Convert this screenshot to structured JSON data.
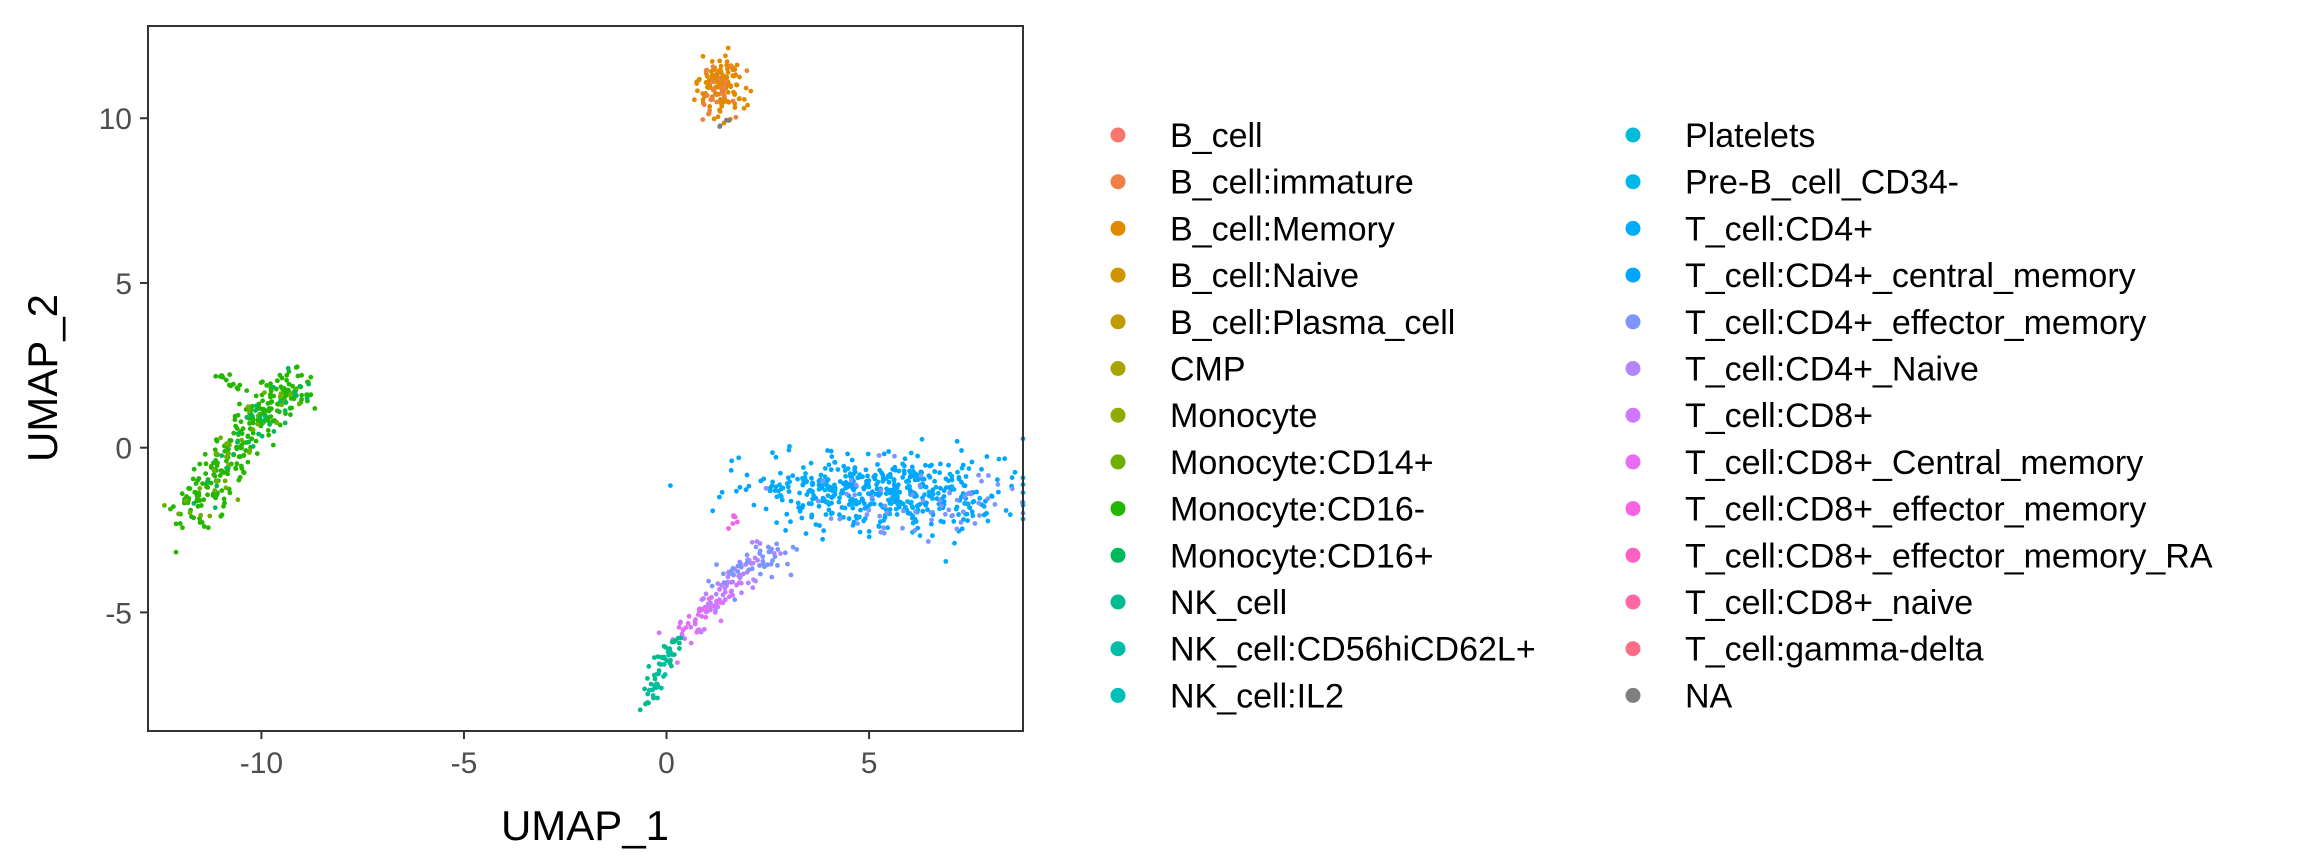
{
  "chart_data": {
    "type": "scatter",
    "title": "",
    "xlabel": "UMAP_1",
    "ylabel": "UMAP_2",
    "xlim": [
      -12.8,
      8.8
    ],
    "ylim": [
      -8.6,
      12.8
    ],
    "xticks": [
      -10,
      -5,
      0,
      5
    ],
    "xtick_labels": [
      "-10",
      "-5",
      "0",
      "5"
    ],
    "yticks": [
      -5,
      0,
      5,
      10
    ],
    "ytick_labels": [
      "-5",
      "0",
      "5",
      "10"
    ],
    "grid": false,
    "legend_position": "right",
    "legend": [
      {
        "name": "B_cell",
        "color": "#F8766D"
      },
      {
        "name": "B_cell:immature",
        "color": "#EE8043"
      },
      {
        "name": "B_cell:Memory",
        "color": "#E18A00"
      },
      {
        "name": "B_cell:Naive",
        "color": "#CF9400"
      },
      {
        "name": "B_cell:Plasma_cell",
        "color": "#BE9C00"
      },
      {
        "name": "CMP",
        "color": "#A8A400"
      },
      {
        "name": "Monocyte",
        "color": "#8FAA00"
      },
      {
        "name": "Monocyte:CD14+",
        "color": "#6EB000"
      },
      {
        "name": "Monocyte:CD16-",
        "color": "#24B700"
      },
      {
        "name": "Monocyte:CD16+",
        "color": "#00BA5A"
      },
      {
        "name": "NK_cell",
        "color": "#00BC8E"
      },
      {
        "name": "NK_cell:CD56hiCD62L+",
        "color": "#00BEA5"
      },
      {
        "name": "NK_cell:IL2",
        "color": "#00BFB8"
      },
      {
        "name": "Platelets",
        "color": "#00BCD8"
      },
      {
        "name": "Pre-B_cell_CD34-",
        "color": "#00B6EB"
      },
      {
        "name": "T_cell:CD4+",
        "color": "#00ADFA"
      },
      {
        "name": "T_cell:CD4+_central_memory",
        "color": "#00A5FF"
      },
      {
        "name": "T_cell:CD4+_effector_memory",
        "color": "#7D96FF"
      },
      {
        "name": "T_cell:CD4+_Naive",
        "color": "#B385FF"
      },
      {
        "name": "T_cell:CD8+",
        "color": "#D177FF"
      },
      {
        "name": "T_cell:CD8+_Central_memory",
        "color": "#E76BF3"
      },
      {
        "name": "T_cell:CD8+_effector_memory",
        "color": "#F564E3"
      },
      {
        "name": "T_cell:CD8+_effector_memory_RA",
        "color": "#FF61C3"
      },
      {
        "name": "T_cell:CD8+_naive",
        "color": "#FF67A4"
      },
      {
        "name": "T_cell:gamma-delta",
        "color": "#FB6E86"
      },
      {
        "name": "NA",
        "color": "#7F7F7F"
      }
    ],
    "clusters": [
      {
        "label": "B_cell:Memory",
        "type": "ellipse",
        "n": 130,
        "cx": 1.35,
        "cy": 10.9,
        "sx": 0.28,
        "sy": 0.5
      },
      {
        "label": "B_cell:immature",
        "type": "ellipse",
        "n": 25,
        "cx": 1.4,
        "cy": 10.9,
        "sx": 0.28,
        "sy": 0.45
      },
      {
        "label": "NA",
        "type": "ellipse",
        "n": 4,
        "cx": 1.4,
        "cy": 9.8,
        "sx": 0.08,
        "sy": 0.12
      },
      {
        "label": "Monocyte:CD16-",
        "type": "path",
        "n": 260,
        "path": [
          [
            -11.9,
            -2.2
          ],
          [
            -11.1,
            -0.9
          ],
          [
            -10.4,
            0.4
          ],
          [
            -9.7,
            1.3
          ],
          [
            -9.0,
            2.0
          ]
        ],
        "spread": 0.3
      },
      {
        "label": "Monocyte:CD14+",
        "type": "path",
        "n": 40,
        "path": [
          [
            -11.8,
            -2.0
          ],
          [
            -11.3,
            -1.2
          ],
          [
            -10.3,
            0.6
          ],
          [
            -9.2,
            1.9
          ]
        ],
        "spread": 0.25
      },
      {
        "label": "Monocyte:CD16+",
        "type": "path",
        "n": 35,
        "path": [
          [
            -11.6,
            -1.9
          ],
          [
            -10.2,
            0.7
          ],
          [
            -9.1,
            2.1
          ]
        ],
        "spread": 0.3
      },
      {
        "label": "Monocyte:CD16-",
        "type": "path",
        "n": 12,
        "path": [
          [
            -11.4,
            2.5
          ],
          [
            -10.6,
            1.8
          ]
        ],
        "spread": 0.08
      },
      {
        "label": "T_cell:CD4+_central_memory",
        "type": "ellipse",
        "n": 330,
        "cx": 5.3,
        "cy": -1.3,
        "sx": 1.6,
        "sy": 0.55
      },
      {
        "label": "T_cell:CD4+",
        "type": "ellipse",
        "n": 110,
        "cx": 6.0,
        "cy": -1.5,
        "sx": 1.3,
        "sy": 0.6
      },
      {
        "label": "T_cell:CD4+",
        "type": "ellipse",
        "n": 60,
        "cx": 3.8,
        "cy": -1.0,
        "sx": 0.6,
        "sy": 0.35
      },
      {
        "label": "T_cell:CD4+_effector_memory",
        "type": "ellipse",
        "n": 60,
        "cx": 6.3,
        "cy": -1.7,
        "sx": 1.3,
        "sy": 0.5
      },
      {
        "label": "T_cell:CD4+_Naive",
        "type": "path",
        "n": 50,
        "path": [
          [
            1.0,
            -5.0
          ],
          [
            1.6,
            -4.0
          ],
          [
            2.5,
            -3.2
          ]
        ],
        "spread": 0.25
      },
      {
        "label": "T_cell:CD4+_effector_memory",
        "type": "path",
        "n": 45,
        "path": [
          [
            1.3,
            -4.2
          ],
          [
            2.3,
            -3.4
          ],
          [
            2.9,
            -3.2
          ]
        ],
        "spread": 0.25
      },
      {
        "label": "T_cell:CD8+",
        "type": "path",
        "n": 45,
        "path": [
          [
            0.3,
            -6.0
          ],
          [
            0.9,
            -5.1
          ],
          [
            1.7,
            -4.2
          ]
        ],
        "spread": 0.2
      },
      {
        "label": "T_cell:CD8+_Central_memory",
        "type": "path",
        "n": 15,
        "path": [
          [
            0.5,
            -5.5
          ],
          [
            1.3,
            -4.5
          ]
        ],
        "spread": 0.15
      },
      {
        "label": "T_cell:CD8+_effector_memory",
        "type": "path",
        "n": 6,
        "path": [
          [
            1.6,
            -2.4
          ],
          [
            1.7,
            -2.1
          ]
        ],
        "spread": 0.05
      },
      {
        "label": "NK_cell",
        "type": "path",
        "n": 50,
        "path": [
          [
            -0.45,
            -7.8
          ],
          [
            -0.3,
            -7.0
          ],
          [
            0.0,
            -6.3
          ],
          [
            0.3,
            -5.7
          ]
        ],
        "spread": 0.12
      },
      {
        "label": "NK_cell:CD56hiCD62L+",
        "type": "path",
        "n": 12,
        "path": [
          [
            -0.4,
            -7.5
          ],
          [
            0.1,
            -6.3
          ]
        ],
        "spread": 0.1
      }
    ]
  }
}
